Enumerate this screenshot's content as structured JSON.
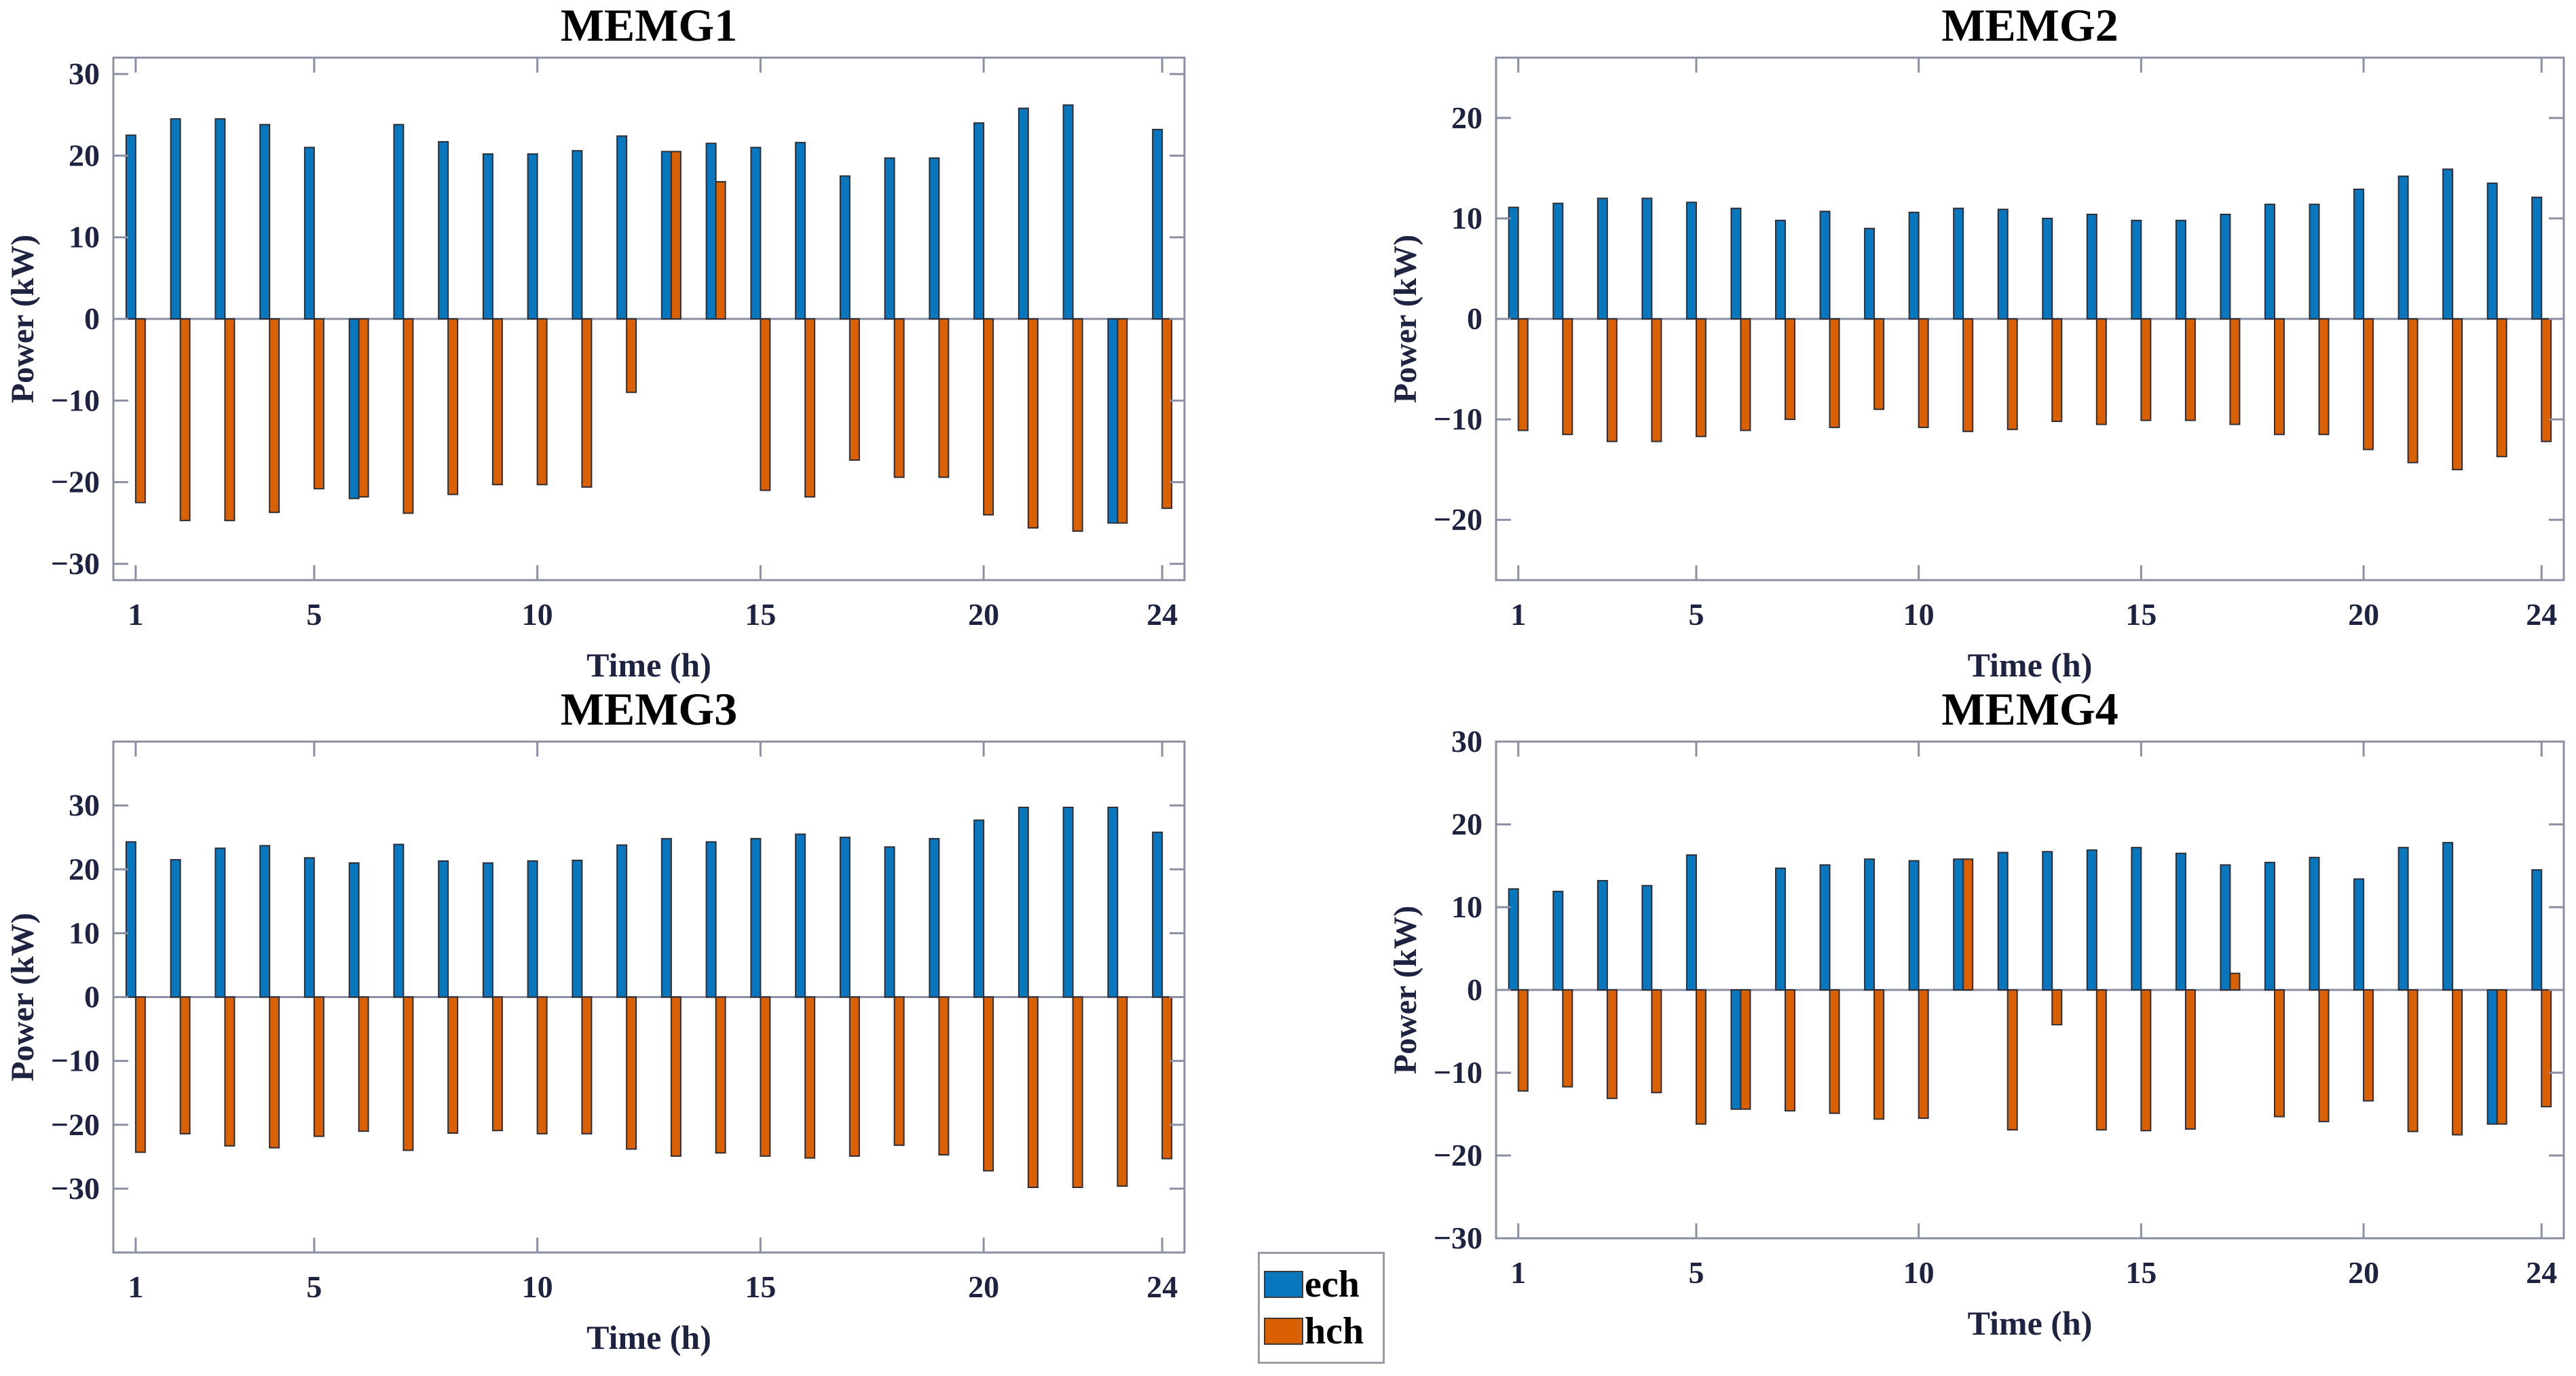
{
  "figure": {
    "background": "#ffffff",
    "axis_color": "#8a8fa3",
    "tick_label_color": "#1f2342",
    "title_color": "#000000"
  },
  "legend": {
    "items": [
      {
        "label": "ech",
        "color": "#0877BD"
      },
      {
        "label": "hch",
        "color": "#DA6004"
      }
    ]
  },
  "chart_data": [
    {
      "id": "memg1",
      "type": "bar",
      "title": "MEMG1",
      "xlabel": "Time (h)",
      "ylabel": "Power (kW)",
      "x": [
        1,
        2,
        3,
        4,
        5,
        6,
        7,
        8,
        9,
        10,
        11,
        12,
        13,
        14,
        15,
        16,
        17,
        18,
        19,
        20,
        21,
        22,
        23,
        24
      ],
      "xticks": [
        1,
        5,
        10,
        15,
        20,
        24
      ],
      "yticks": [
        -30,
        -20,
        -10,
        0,
        10,
        20,
        30
      ],
      "ylim": [
        -32,
        32
      ],
      "grid": false,
      "legend_position": "outside-bottom-center",
      "series": [
        {
          "name": "ech",
          "color": "#0877BD",
          "values": [
            22.5,
            24.5,
            24.5,
            23.8,
            21.0,
            -22.0,
            23.8,
            21.7,
            20.2,
            20.2,
            20.6,
            22.4,
            20.5,
            21.5,
            21.0,
            21.6,
            17.5,
            19.7,
            19.7,
            24.0,
            25.8,
            26.2,
            -25.0,
            23.2
          ]
        },
        {
          "name": "hch",
          "color": "#DA6004",
          "values": [
            -22.5,
            -24.7,
            -24.7,
            -23.7,
            -20.8,
            -21.8,
            -23.8,
            -21.5,
            -20.3,
            -20.3,
            -20.6,
            -9.0,
            20.5,
            16.8,
            -21.0,
            -21.8,
            -17.3,
            -19.4,
            -19.4,
            -24.0,
            -25.6,
            -26.0,
            -25.0,
            -23.2
          ]
        }
      ]
    },
    {
      "id": "memg2",
      "type": "bar",
      "title": "MEMG2",
      "xlabel": "Time (h)",
      "ylabel": "Power (kW)",
      "x": [
        1,
        2,
        3,
        4,
        5,
        6,
        7,
        8,
        9,
        10,
        11,
        12,
        13,
        14,
        15,
        16,
        17,
        18,
        19,
        20,
        21,
        22,
        23,
        24
      ],
      "xticks": [
        1,
        5,
        10,
        15,
        20,
        24
      ],
      "yticks": [
        -20,
        -10,
        0,
        10,
        20
      ],
      "ylim": [
        -26,
        26
      ],
      "grid": false,
      "series": [
        {
          "name": "ech",
          "color": "#0877BD",
          "values": [
            11.1,
            11.5,
            12.0,
            12.0,
            11.6,
            11.0,
            9.8,
            10.7,
            9.0,
            10.6,
            11.0,
            10.9,
            10.0,
            10.4,
            9.8,
            9.8,
            10.4,
            11.4,
            11.4,
            12.9,
            14.2,
            14.9,
            13.5,
            12.1
          ]
        },
        {
          "name": "hch",
          "color": "#DA6004",
          "values": [
            -11.1,
            -11.5,
            -12.2,
            -12.2,
            -11.7,
            -11.1,
            -10.0,
            -10.8,
            -9.0,
            -10.8,
            -11.2,
            -11.0,
            -10.2,
            -10.5,
            -10.1,
            -10.1,
            -10.5,
            -11.5,
            -11.5,
            -13.0,
            -14.3,
            -15.0,
            -13.7,
            -12.2
          ]
        }
      ]
    },
    {
      "id": "memg3",
      "type": "bar",
      "title": "MEMG3",
      "xlabel": "Time (h)",
      "ylabel": "Power (kW)",
      "x": [
        1,
        2,
        3,
        4,
        5,
        6,
        7,
        8,
        9,
        10,
        11,
        12,
        13,
        14,
        15,
        16,
        17,
        18,
        19,
        20,
        21,
        22,
        23,
        24
      ],
      "xticks": [
        1,
        5,
        10,
        15,
        20,
        24
      ],
      "yticks": [
        -30,
        -20,
        -10,
        0,
        10,
        20,
        30
      ],
      "ylim": [
        -40,
        40
      ],
      "grid": false,
      "series": [
        {
          "name": "ech",
          "color": "#0877BD",
          "values": [
            24.3,
            21.5,
            23.3,
            23.7,
            21.8,
            21.0,
            23.9,
            21.3,
            21.0,
            21.3,
            21.4,
            23.8,
            24.8,
            24.3,
            24.8,
            25.5,
            25.0,
            23.5,
            24.8,
            27.7,
            29.7,
            29.7,
            29.7,
            25.8
          ]
        },
        {
          "name": "hch",
          "color": "#DA6004",
          "values": [
            -24.3,
            -21.4,
            -23.3,
            -23.6,
            -21.8,
            -21.0,
            -24.0,
            -21.3,
            -20.9,
            -21.4,
            -21.4,
            -23.8,
            -24.9,
            -24.4,
            -24.9,
            -25.2,
            -24.9,
            -23.2,
            -24.7,
            -27.2,
            -29.8,
            -29.8,
            -29.6,
            -25.3
          ]
        }
      ]
    },
    {
      "id": "memg4",
      "type": "bar",
      "title": "MEMG4",
      "xlabel": "Time (h)",
      "ylabel": "Power (kW)",
      "x": [
        1,
        2,
        3,
        4,
        5,
        6,
        7,
        8,
        9,
        10,
        11,
        12,
        13,
        14,
        15,
        16,
        17,
        18,
        19,
        20,
        21,
        22,
        23,
        24
      ],
      "xticks": [
        1,
        5,
        10,
        15,
        20,
        24
      ],
      "yticks": [
        -30,
        -20,
        -10,
        0,
        10,
        20,
        30
      ],
      "ylim": [
        -30,
        30
      ],
      "grid": false,
      "series": [
        {
          "name": "ech",
          "color": "#0877BD",
          "values": [
            12.2,
            11.9,
            13.2,
            12.6,
            16.3,
            -14.4,
            14.7,
            15.1,
            15.8,
            15.6,
            15.8,
            16.6,
            16.7,
            16.9,
            17.2,
            16.5,
            15.1,
            15.4,
            16.0,
            13.4,
            17.2,
            17.8,
            -16.2,
            14.5
          ]
        },
        {
          "name": "hch",
          "color": "#DA6004",
          "values": [
            -12.2,
            -11.7,
            -13.1,
            -12.4,
            -16.2,
            -14.4,
            -14.6,
            -14.9,
            -15.6,
            -15.5,
            15.8,
            -16.9,
            -4.2,
            -16.9,
            -17.0,
            -16.8,
            2.0,
            -15.3,
            -15.9,
            -13.4,
            -17.1,
            -17.5,
            -16.2,
            -14.1
          ]
        }
      ]
    }
  ]
}
